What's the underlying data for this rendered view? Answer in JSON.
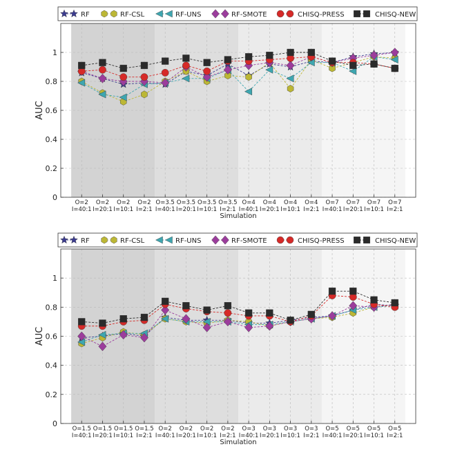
{
  "chart_data": [
    {
      "type": "line",
      "xlabel": "Simulation",
      "ylabel": "AUC",
      "ylim": [
        0,
        1.2
      ],
      "yticks": [
        0,
        0.2,
        0.4,
        0.6,
        0.8,
        1
      ],
      "ytick_labels": [
        "0",
        "0.2",
        "0.4",
        "0.6",
        "0.8",
        "1"
      ],
      "grid": true,
      "legend_position": "top",
      "categories": [
        {
          "o": "O=2",
          "i": "I=40:1"
        },
        {
          "o": "O=2",
          "i": "I=20:1"
        },
        {
          "o": "O=2",
          "i": "I=10:1"
        },
        {
          "o": "O=2",
          "i": "I=2:1"
        },
        {
          "o": "O=3.5",
          "i": "I=40:1"
        },
        {
          "o": "O=3.5",
          "i": "I=20:1"
        },
        {
          "o": "O=3.5",
          "i": "I=10:1"
        },
        {
          "o": "O=3.5",
          "i": "I=2:1"
        },
        {
          "o": "O=4",
          "i": "I=40:1"
        },
        {
          "o": "O=4",
          "i": "I=20:1"
        },
        {
          "o": "O=4",
          "i": "I=10:1"
        },
        {
          "o": "O=4",
          "i": "I=2:1"
        },
        {
          "o": "O=7",
          "i": "I=40:1"
        },
        {
          "o": "O=7",
          "i": "I=20:1"
        },
        {
          "o": "O=7",
          "i": "I=10:1"
        },
        {
          "o": "O=7",
          "i": "I=2:1"
        }
      ],
      "bands": [
        {
          "from": 0,
          "to": 3,
          "color": "#d3d3d3"
        },
        {
          "from": 4,
          "to": 7,
          "color": "#dedede"
        },
        {
          "from": 8,
          "to": 11,
          "color": "#ebebeb"
        },
        {
          "from": 12,
          "to": 15,
          "color": "#f5f5f5"
        }
      ],
      "series": [
        {
          "name": "RF",
          "marker": "star",
          "color": "#3b3b8f",
          "values": [
            0.86,
            0.82,
            0.78,
            0.79,
            0.78,
            0.87,
            0.84,
            0.92,
            0.84,
            0.92,
            0.9,
            0.94,
            0.93,
            0.97,
            0.99,
            1.0
          ]
        },
        {
          "name": "RF-CSL",
          "marker": "hexagon",
          "color": "#bcb735",
          "values": [
            0.8,
            0.72,
            0.66,
            0.71,
            0.8,
            0.87,
            0.8,
            0.84,
            0.83,
            0.93,
            0.75,
            0.95,
            0.89,
            0.93,
            0.97,
            0.96
          ]
        },
        {
          "name": "RF-UNS",
          "marker": "triangle-left",
          "color": "#3ea6b0",
          "values": [
            0.79,
            0.71,
            0.69,
            0.78,
            0.79,
            0.82,
            0.82,
            0.88,
            0.73,
            0.88,
            0.82,
            0.93,
            0.93,
            0.87,
            0.97,
            0.95
          ]
        },
        {
          "name": "RF-SMOTE",
          "marker": "diamond",
          "color": "#9b3d9c",
          "values": [
            0.87,
            0.82,
            0.8,
            0.8,
            0.79,
            0.9,
            0.83,
            0.88,
            0.91,
            0.93,
            0.91,
            0.97,
            0.93,
            0.96,
            0.98,
            1.0
          ]
        },
        {
          "name": "CHISQ-PRESS",
          "marker": "circle",
          "color": "#d62a28",
          "values": [
            0.87,
            0.88,
            0.83,
            0.83,
            0.86,
            0.91,
            0.87,
            0.94,
            0.94,
            0.95,
            0.96,
            0.97,
            0.93,
            0.93,
            0.92,
            0.89
          ]
        },
        {
          "name": "CHISQ-NEW",
          "marker": "square",
          "color": "#2b2b2b",
          "values": [
            0.91,
            0.93,
            0.89,
            0.91,
            0.94,
            0.96,
            0.93,
            0.95,
            0.97,
            0.98,
            1.0,
            1.0,
            0.94,
            0.91,
            0.92,
            0.89
          ]
        }
      ]
    },
    {
      "type": "line",
      "xlabel": "Simulation",
      "ylabel": "AUC",
      "ylim": [
        0,
        1.2
      ],
      "yticks": [
        0,
        0.2,
        0.4,
        0.6,
        0.8,
        1
      ],
      "ytick_labels": [
        "0",
        "0.2",
        "0.4",
        "0.6",
        "0.8",
        "1"
      ],
      "grid": true,
      "legend_position": "top",
      "categories": [
        {
          "o": "O=1.5",
          "i": "I=40:1"
        },
        {
          "o": "O=1.5",
          "i": "I=20:1"
        },
        {
          "o": "O=1.5",
          "i": "I=10:1"
        },
        {
          "o": "O=1.5",
          "i": "I=2:1"
        },
        {
          "o": "O=2",
          "i": "I=40:1"
        },
        {
          "o": "O=2",
          "i": "I=20:1"
        },
        {
          "o": "O=2",
          "i": "I=10:1"
        },
        {
          "o": "O=2",
          "i": "I=2:1"
        },
        {
          "o": "O=3",
          "i": "I=40:1"
        },
        {
          "o": "O=3",
          "i": "I=20:1"
        },
        {
          "o": "O=3",
          "i": "I=10:1"
        },
        {
          "o": "O=3",
          "i": "I=2:1"
        },
        {
          "o": "O=5",
          "i": "I=40:1"
        },
        {
          "o": "O=5",
          "i": "I=20:1"
        },
        {
          "o": "O=5",
          "i": "I=10:1"
        },
        {
          "o": "O=5",
          "i": "I=2:1"
        }
      ],
      "bands": [
        {
          "from": 0,
          "to": 3,
          "color": "#d3d3d3"
        },
        {
          "from": 4,
          "to": 7,
          "color": "#dedede"
        },
        {
          "from": 8,
          "to": 11,
          "color": "#ebebeb"
        },
        {
          "from": 12,
          "to": 15,
          "color": "#f5f5f5"
        }
      ],
      "series": [
        {
          "name": "RF",
          "marker": "star",
          "color": "#3b3b8f",
          "values": [
            0.59,
            0.6,
            0.62,
            0.6,
            0.73,
            0.71,
            0.71,
            0.71,
            0.69,
            0.69,
            0.71,
            0.73,
            0.74,
            0.78,
            0.82,
            0.81
          ]
        },
        {
          "name": "RF-CSL",
          "marker": "hexagon",
          "color": "#bcb735",
          "values": [
            0.55,
            0.59,
            0.63,
            0.61,
            0.72,
            0.7,
            0.69,
            0.71,
            0.7,
            0.67,
            0.7,
            0.72,
            0.73,
            0.76,
            0.8,
            0.82
          ]
        },
        {
          "name": "RF-UNS",
          "marker": "triangle-left",
          "color": "#3ea6b0",
          "values": [
            0.56,
            0.61,
            0.62,
            0.62,
            0.72,
            0.7,
            0.7,
            0.7,
            0.68,
            0.68,
            0.7,
            0.72,
            0.74,
            0.78,
            0.8,
            0.81
          ]
        },
        {
          "name": "RF-SMOTE",
          "marker": "diamond",
          "color": "#9b3d9c",
          "values": [
            0.6,
            0.53,
            0.61,
            0.59,
            0.78,
            0.72,
            0.66,
            0.7,
            0.66,
            0.67,
            0.7,
            0.72,
            0.74,
            0.81,
            0.8,
            0.82
          ]
        },
        {
          "name": "CHISQ-PRESS",
          "marker": "circle",
          "color": "#d62a28",
          "values": [
            0.67,
            0.67,
            0.7,
            0.71,
            0.82,
            0.79,
            0.77,
            0.76,
            0.74,
            0.74,
            0.7,
            0.74,
            0.88,
            0.87,
            0.82,
            0.8
          ]
        },
        {
          "name": "CHISQ-NEW",
          "marker": "square",
          "color": "#2b2b2b",
          "values": [
            0.7,
            0.69,
            0.72,
            0.73,
            0.84,
            0.81,
            0.78,
            0.81,
            0.76,
            0.76,
            0.71,
            0.75,
            0.91,
            0.91,
            0.85,
            0.83
          ]
        }
      ]
    }
  ]
}
